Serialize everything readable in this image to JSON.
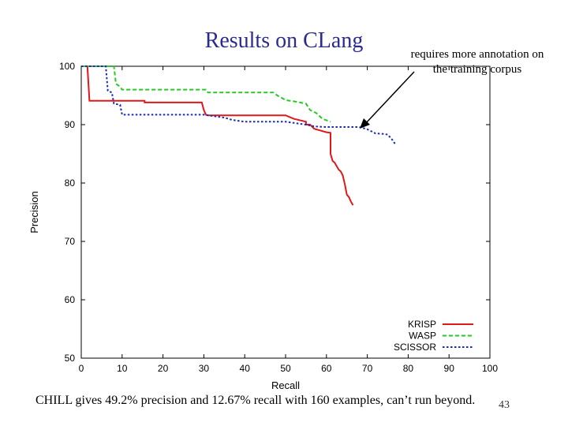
{
  "slide": {
    "title": "Results on CLang",
    "annotation": "requires more annotation on the training corpus",
    "annotation_line1": "requires more annotation on",
    "annotation_line2": "the training corpus",
    "caption": "CHILL gives 49.2% precision and 12.67% recall with 160 examples, can’t run beyond.",
    "page_number": "43"
  },
  "colors": {
    "title": "#2b2b8f",
    "KRISP": "#e01818",
    "WASP": "#22cc22",
    "SCISSOR": "#1a2ab8"
  },
  "chart_data": {
    "type": "line",
    "title": "",
    "xlabel": "Recall",
    "ylabel": "Precision",
    "xlim": [
      0,
      100
    ],
    "ylim": [
      50,
      100
    ],
    "xticks": [
      "0",
      "10",
      "20",
      "30",
      "40",
      "50",
      "60",
      "70",
      "80",
      "90",
      "100"
    ],
    "yticks": [
      "50",
      "60",
      "70",
      "80",
      "90",
      "100"
    ],
    "legend_position": "bottom-right",
    "series": [
      {
        "name": "KRISP",
        "style": "solid",
        "x": [
          0,
          1.5,
          2,
          15.5,
          15.5,
          29.5,
          30,
          30.5,
          31,
          35,
          50,
          52,
          55,
          55,
          56,
          57,
          58,
          60,
          61,
          61,
          61.5,
          62,
          63,
          63.5,
          64,
          64.5,
          65,
          65.5,
          66,
          66.5
        ],
        "y": [
          100,
          100,
          94.1,
          94.1,
          93.8,
          93.8,
          92.5,
          91.7,
          91.6,
          91.6,
          91.6,
          91,
          90.5,
          90,
          90,
          89.3,
          89.1,
          88.7,
          88.6,
          85,
          83.8,
          83.5,
          82.3,
          82,
          81.3,
          79.8,
          78,
          77.6,
          76.8,
          76.2
        ]
      },
      {
        "name": "WASP",
        "style": "dashed",
        "x": [
          0,
          8,
          8.5,
          9.5,
          10,
          30.5,
          31,
          47,
          48,
          50,
          52,
          55,
          56,
          57.5,
          59,
          61
        ],
        "y": [
          100,
          100,
          97,
          96.5,
          96,
          96,
          95.5,
          95.5,
          95,
          94.2,
          94,
          93.6,
          92.5,
          92,
          91,
          90.5
        ]
      },
      {
        "name": "SCISSOR",
        "style": "dotted",
        "x": [
          0,
          6,
          6.5,
          7.5,
          8,
          9.5,
          10,
          30,
          35,
          37,
          40,
          45,
          50,
          55,
          57,
          60,
          68,
          69,
          70,
          72,
          74,
          75,
          76,
          76.5,
          77
        ],
        "y": [
          100,
          100,
          95.8,
          95.5,
          93.6,
          93.4,
          91.7,
          91.7,
          91.2,
          90.8,
          90.5,
          90.5,
          90.5,
          90,
          89.7,
          89.6,
          89.6,
          89.4,
          89.2,
          88.5,
          88.4,
          88.3,
          87.5,
          87,
          86.5
        ]
      }
    ]
  }
}
